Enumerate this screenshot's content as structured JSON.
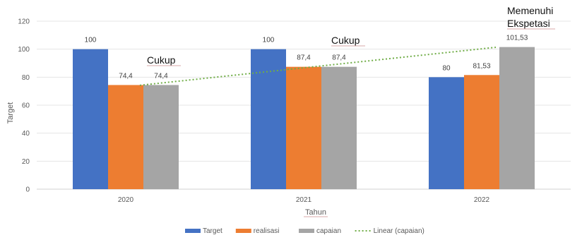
{
  "chart_data": {
    "type": "bar",
    "categories": [
      "2020",
      "2021",
      "2022"
    ],
    "series": [
      {
        "name": "Target",
        "color": "#4472C4",
        "values": [
          100,
          100,
          80
        ],
        "labels": [
          "100",
          "100",
          "80"
        ]
      },
      {
        "name": "realisasi",
        "color": "#ED7D31",
        "values": [
          74.4,
          87.4,
          81.53
        ],
        "labels": [
          "74,4",
          "87,4",
          "81,53"
        ]
      },
      {
        "name": "capaian",
        "color": "#A5A5A5",
        "values": [
          74.4,
          87.4,
          101.53
        ],
        "labels": [
          "74,4",
          "87,4",
          "101,53"
        ]
      }
    ],
    "trendline": {
      "name": "Linear (capaian)",
      "color": "#70AD47",
      "style": "dotted",
      "of_series": "capaian"
    },
    "xlabel": "Tahun",
    "ylabel": "Target",
    "ylim": [
      0,
      120
    ],
    "yticks": [
      0,
      20,
      40,
      60,
      80,
      100,
      120
    ],
    "grid": true,
    "legend_position": "bottom",
    "annotations": [
      {
        "text": "Cukup",
        "category": "2020"
      },
      {
        "text": "Cukup",
        "category": "2021"
      },
      {
        "text": "Memenuhi",
        "category": "2022"
      },
      {
        "text": "Ekspetasi",
        "category": "2022"
      }
    ]
  }
}
